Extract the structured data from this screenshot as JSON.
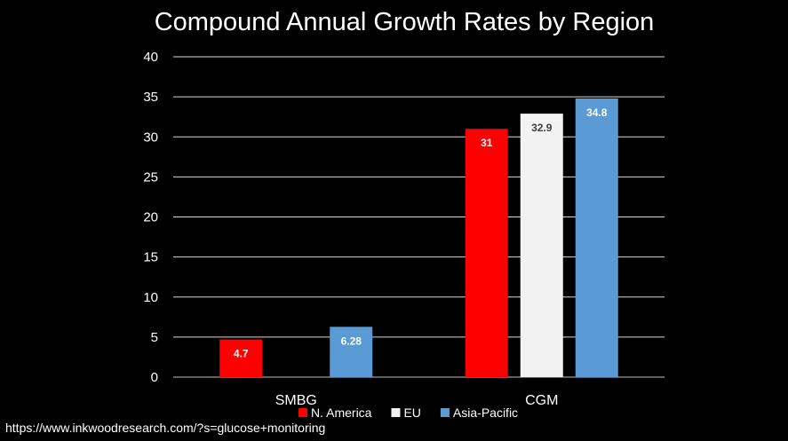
{
  "chart_data": {
    "type": "bar",
    "title": "Compound Annual Growth Rates by Region",
    "xlabel": "",
    "ylabel": "",
    "categories": [
      "SMBG",
      "CGM"
    ],
    "series": [
      {
        "name": "N. America",
        "color": "#ff0000",
        "label_color": "#ffffff",
        "values": [
          4.7,
          31
        ]
      },
      {
        "name": "EU",
        "color": "#f2f2f2",
        "label_color": "#404040",
        "values": [
          null,
          32.9
        ]
      },
      {
        "name": "Asia-Pacific",
        "color": "#5b9bd5",
        "label_color": "#ffffff",
        "values": [
          6.28,
          34.8
        ]
      }
    ],
    "ylim": [
      0,
      40
    ],
    "yticks": [
      0,
      5,
      10,
      15,
      20,
      25,
      30,
      35,
      40
    ],
    "grid": true,
    "legend_position": "bottom"
  },
  "source_text": "https://www.inkwoodresearch.com/?s=glucose+monitoring"
}
